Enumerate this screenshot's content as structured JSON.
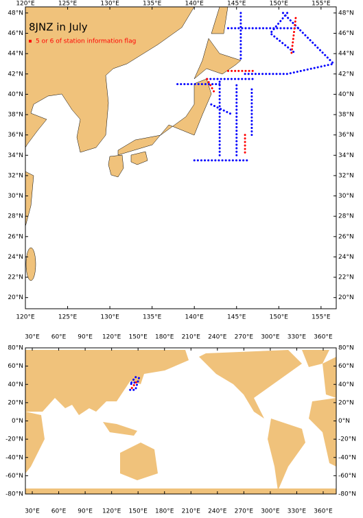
{
  "map_top": {
    "title": "8JNZ in July",
    "legend": "5 or 6 of station information flag",
    "legend_color": "#ff0000",
    "xlim": [
      120,
      156.8
    ],
    "ylim": [
      18.9,
      48.6
    ],
    "xticks": [
      {
        "value": 120,
        "label": "120°E"
      },
      {
        "value": 125,
        "label": "125°E"
      },
      {
        "value": 130,
        "label": "130°E"
      },
      {
        "value": 135,
        "label": "135°E"
      },
      {
        "value": 140,
        "label": "140°E"
      },
      {
        "value": 145,
        "label": "145°E"
      },
      {
        "value": 150,
        "label": "150°E"
      },
      {
        "value": 155,
        "label": "155°E"
      }
    ],
    "yticks": [
      {
        "value": 20,
        "label": "20°N"
      },
      {
        "value": 22,
        "label": "22°N"
      },
      {
        "value": 24,
        "label": "24°N"
      },
      {
        "value": 26,
        "label": "26°N"
      },
      {
        "value": 28,
        "label": "28°N"
      },
      {
        "value": 30,
        "label": "30°N"
      },
      {
        "value": 32,
        "label": "32°N"
      },
      {
        "value": 34,
        "label": "34°N"
      },
      {
        "value": 36,
        "label": "36°N"
      },
      {
        "value": 38,
        "label": "38°N"
      },
      {
        "value": 40,
        "label": "40°N"
      },
      {
        "value": 42,
        "label": "42°N"
      },
      {
        "value": 44,
        "label": "44°N"
      },
      {
        "value": 46,
        "label": "46°N"
      },
      {
        "value": 48,
        "label": "48°N"
      }
    ],
    "stations": [
      {
        "color": "#0000ff",
        "lon": [
          141.5,
          147
        ],
        "lat": [
          41.5,
          41.5
        ]
      },
      {
        "color": "#0000ff",
        "lon": [
          143,
          143
        ],
        "lat": [
          34,
          41.5
        ]
      },
      {
        "color": "#0000ff",
        "lon": [
          145,
          145
        ],
        "lat": [
          34,
          41
        ]
      },
      {
        "color": "#0000ff",
        "lon": [
          146.8,
          146.8
        ],
        "lat": [
          36,
          40.5
        ]
      },
      {
        "color": "#0000ff",
        "lon": [
          140,
          146.5
        ],
        "lat": [
          33.5,
          33.5
        ]
      },
      {
        "color": "#0000ff",
        "lon": [
          138,
          143
        ],
        "lat": [
          41,
          41
        ]
      },
      {
        "color": "#0000ff",
        "lon": [
          146,
          151,
          156.5
        ],
        "lat": [
          42,
          42,
          43
        ]
      },
      {
        "color": "#0000ff",
        "lon": [
          151,
          149,
          152
        ],
        "lat": [
          48,
          46,
          44
        ]
      },
      {
        "color": "#0000ff",
        "lon": [
          144,
          152.5
        ],
        "lat": [
          46.5,
          46.5
        ]
      },
      {
        "color": "#0000ff",
        "lon": [
          145.5,
          145.5
        ],
        "lat": [
          48,
          43.5
        ]
      },
      {
        "color": "#0000ff",
        "lon": [
          150.5,
          156.5
        ],
        "lat": [
          48,
          43
        ]
      },
      {
        "color": "#0000ff",
        "lon": [
          142,
          144.5
        ],
        "lat": [
          39,
          38
        ]
      },
      {
        "color": "#ff0000",
        "lon": [
          144,
          147
        ],
        "lat": [
          42.3,
          42.3
        ]
      },
      {
        "color": "#ff0000",
        "lon": [
          141.5,
          142.5
        ],
        "lat": [
          41.5,
          40
        ]
      },
      {
        "color": "#ff0000",
        "lon": [
          146,
          146
        ],
        "lat": [
          36,
          34
        ]
      },
      {
        "color": "#ff0000",
        "lon": [
          152,
          151.5
        ],
        "lat": [
          47.5,
          44
        ]
      }
    ]
  },
  "map_world": {
    "xlim": [
      22.2,
      374.8
    ],
    "ylim": [
      -80,
      80
    ],
    "xticks": [
      {
        "value": 30,
        "label": "30°E"
      },
      {
        "value": 60,
        "label": "60°E"
      },
      {
        "value": 90,
        "label": "90°E"
      },
      {
        "value": 120,
        "label": "120°E"
      },
      {
        "value": 150,
        "label": "150°E"
      },
      {
        "value": 180,
        "label": "180°E"
      },
      {
        "value": 210,
        "label": "210°E"
      },
      {
        "value": 240,
        "label": "240°E"
      },
      {
        "value": 270,
        "label": "270°E"
      },
      {
        "value": 300,
        "label": "300°E"
      },
      {
        "value": 330,
        "label": "330°E"
      },
      {
        "value": 360,
        "label": "360°E"
      }
    ],
    "yticks": [
      {
        "value": -80,
        "label": "-80°N"
      },
      {
        "value": -60,
        "label": "-60°N"
      },
      {
        "value": -40,
        "label": "-40°N"
      },
      {
        "value": -20,
        "label": "-20°N"
      },
      {
        "value": 0,
        "label": "0°N"
      },
      {
        "value": 20,
        "label": "20°N"
      },
      {
        "value": 40,
        "label": "40°N"
      },
      {
        "value": 60,
        "label": "60°N"
      },
      {
        "value": 80,
        "label": "80°N"
      }
    ],
    "stations": [
      {
        "color": "#0000ff",
        "lon": [
          141,
          147,
          151,
          147,
          141,
          146
        ],
        "lat": [
          34,
          34,
          47,
          48,
          40,
          42
        ]
      },
      {
        "color": "#ff0000",
        "lon": [
          143,
          146,
          150
        ],
        "lat": [
          36,
          40,
          45
        ]
      }
    ]
  }
}
